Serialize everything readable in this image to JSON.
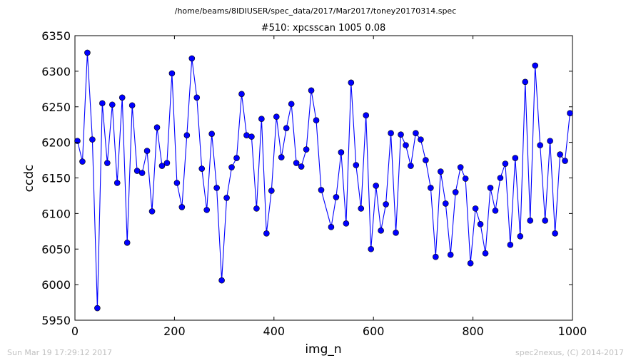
{
  "figure": {
    "suptitle": "/home/beams/8IDIUSER/spec_data/2017/Mar2017/toney20170314.spec",
    "footer_left": "Sun Mar 19 17:29:12 2017",
    "footer_right": "spec2nexus, (C) 2014-2017"
  },
  "chart_data": {
    "type": "line",
    "title": "#510: xpcsscan 1005 0.08",
    "xlabel": "img_n",
    "ylabel": "ccdc",
    "xlim": [
      0,
      1000
    ],
    "ylim": [
      5950,
      6350
    ],
    "xticks": [
      0,
      200,
      400,
      600,
      800,
      1000
    ],
    "yticks": [
      5950,
      6000,
      6050,
      6100,
      6150,
      6200,
      6250,
      6300,
      6350
    ],
    "grid": false,
    "line_color": "#0000ff",
    "marker_color": "#0000ff",
    "marker": "circle",
    "series": [
      {
        "x": [
          5,
          15,
          25,
          35,
          45,
          55,
          65,
          75,
          85,
          95,
          105,
          115,
          125,
          135,
          145,
          155,
          165,
          175,
          185,
          195,
          205,
          215,
          225,
          235,
          245,
          255,
          265,
          275,
          285,
          295,
          305,
          315,
          325,
          335,
          345,
          355,
          365,
          375,
          385,
          395,
          405,
          415,
          425,
          435,
          445,
          455,
          465,
          475,
          485,
          495,
          515,
          525,
          535,
          545,
          555,
          565,
          575,
          585,
          595,
          605,
          615,
          625,
          635,
          645,
          655,
          665,
          675,
          685,
          695,
          705,
          715,
          725,
          735,
          745,
          755,
          765,
          775,
          785,
          795,
          805,
          815,
          825,
          835,
          845,
          855,
          865,
          875,
          885,
          895,
          905,
          915,
          925,
          935,
          945,
          955,
          965,
          975,
          985,
          995
        ],
        "y": [
          6202,
          6173,
          6326,
          6204,
          5967,
          6255,
          6171,
          6253,
          6143,
          6263,
          6059,
          6252,
          6160,
          6157,
          6188,
          6103,
          6221,
          6167,
          6171,
          6297,
          6143,
          6109,
          6210,
          6318,
          6263,
          6163,
          6105,
          6212,
          6136,
          6006,
          6122,
          6165,
          6178,
          6268,
          6210,
          6208,
          6107,
          6233,
          6072,
          6132,
          6236,
          6179,
          6220,
          6254,
          6171,
          6166,
          6190,
          6273,
          6231,
          6133,
          6081,
          6123,
          6186,
          6086,
          6284,
          6168,
          6107,
          6238,
          6050,
          6139,
          6076,
          6113,
          6213,
          6073,
          6211,
          6196,
          6167,
          6213,
          6204,
          6175,
          6136,
          6039,
          6159,
          6114,
          6042,
          6130,
          6165,
          6149,
          6030,
          6107,
          6085,
          6044,
          6136,
          6104,
          6150,
          6170,
          6056,
          6178,
          6068,
          6285,
          6090,
          6308,
          6196,
          6090,
          6202,
          6072,
          6183,
          6174,
          6241
        ]
      }
    ]
  }
}
